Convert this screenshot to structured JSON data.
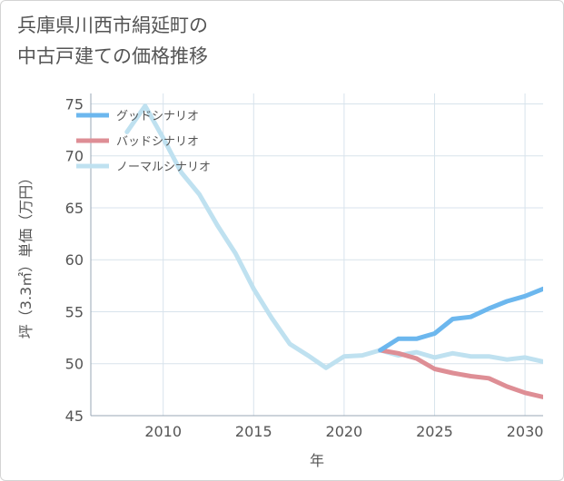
{
  "title": "兵庫県川西市絹延町の\n中古戸建ての価格推移",
  "chart_data": {
    "type": "line",
    "xlabel": "年",
    "ylabel": "坪（3.3㎡）単価（万円）",
    "xlim": [
      2006,
      2031
    ],
    "ylim": [
      45,
      76
    ],
    "x_ticks": [
      2010,
      2015,
      2020,
      2025,
      2030
    ],
    "y_ticks": [
      45,
      50,
      55,
      60,
      65,
      70,
      75
    ],
    "grid": true,
    "legend_position": "top-left",
    "series": [
      {
        "name": "グッドシナリオ",
        "color": "#6cb7ee",
        "points": [
          [
            2022,
            51.3
          ],
          [
            2023,
            52.4
          ],
          [
            2024,
            52.4
          ],
          [
            2025,
            52.9
          ],
          [
            2026,
            54.3
          ],
          [
            2027,
            54.5
          ],
          [
            2028,
            55.3
          ],
          [
            2029,
            56.0
          ],
          [
            2030,
            56.5
          ],
          [
            2031,
            57.2
          ]
        ]
      },
      {
        "name": "バッドシナリオ",
        "color": "#de8e95",
        "points": [
          [
            2022,
            51.3
          ],
          [
            2023,
            51.0
          ],
          [
            2024,
            50.5
          ],
          [
            2025,
            49.5
          ],
          [
            2026,
            49.1
          ],
          [
            2027,
            48.8
          ],
          [
            2028,
            48.6
          ],
          [
            2029,
            47.8
          ],
          [
            2030,
            47.2
          ],
          [
            2031,
            46.8
          ]
        ]
      },
      {
        "name": "ノーマルシナリオ",
        "color": "#bfe1f0",
        "points": [
          [
            2008,
            72.3
          ],
          [
            2009,
            74.8
          ],
          [
            2010,
            71.7
          ],
          [
            2011,
            68.4
          ],
          [
            2012,
            66.3
          ],
          [
            2013,
            63.3
          ],
          [
            2014,
            60.6
          ],
          [
            2015,
            57.2
          ],
          [
            2016,
            54.4
          ],
          [
            2017,
            51.9
          ],
          [
            2018,
            50.8
          ],
          [
            2019,
            49.6
          ],
          [
            2020,
            50.7
          ],
          [
            2021,
            50.8
          ],
          [
            2022,
            51.3
          ],
          [
            2023,
            50.8
          ],
          [
            2024,
            51.1
          ],
          [
            2025,
            50.6
          ],
          [
            2026,
            51.0
          ],
          [
            2027,
            50.7
          ],
          [
            2028,
            50.7
          ],
          [
            2029,
            50.4
          ],
          [
            2030,
            50.6
          ],
          [
            2031,
            50.2
          ]
        ]
      }
    ]
  }
}
